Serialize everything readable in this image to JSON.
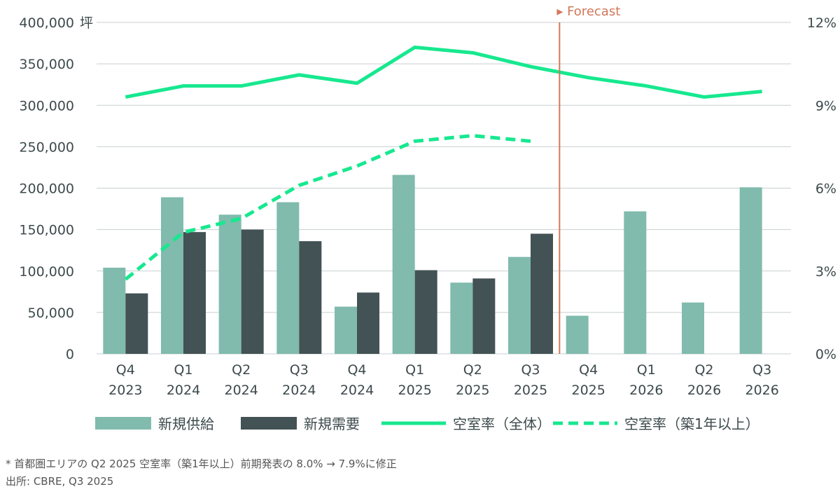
{
  "chart_data": {
    "type": "bar",
    "categories": [
      [
        "Q4",
        "2023"
      ],
      [
        "Q1",
        "2024"
      ],
      [
        "Q2",
        "2024"
      ],
      [
        "Q3",
        "2024"
      ],
      [
        "Q4",
        "2024"
      ],
      [
        "Q1",
        "2025"
      ],
      [
        "Q2",
        "2025"
      ],
      [
        "Q3",
        "2025"
      ],
      [
        "Q4",
        "2025"
      ],
      [
        "Q1",
        "2026"
      ],
      [
        "Q2",
        "2026"
      ],
      [
        "Q3",
        "2026"
      ]
    ],
    "series": [
      {
        "name": "新規供給",
        "kind": "bar",
        "axis": "left",
        "color": "#80bbad",
        "values": [
          104000,
          189000,
          168000,
          183000,
          57000,
          216000,
          86000,
          117000,
          46000,
          172000,
          62000,
          201000
        ]
      },
      {
        "name": "新規需要",
        "kind": "bar",
        "axis": "left",
        "color": "#435254",
        "values": [
          73000,
          147000,
          150000,
          136000,
          74000,
          101000,
          91000,
          145000,
          null,
          null,
          null,
          null
        ]
      },
      {
        "name": "空室率（全体）",
        "kind": "line",
        "axis": "right",
        "color": "#17e88f",
        "values": [
          9.3,
          9.7,
          9.7,
          10.1,
          9.8,
          11.1,
          10.9,
          10.4,
          10.0,
          9.7,
          9.3,
          9.5
        ]
      },
      {
        "name": "空室率（築1年以上）",
        "kind": "dashed-line",
        "axis": "right",
        "color": "#17e88f",
        "values": [
          2.7,
          4.4,
          4.9,
          6.1,
          6.8,
          7.7,
          7.9,
          7.7,
          null,
          null,
          null,
          null
        ]
      }
    ],
    "left_axis": {
      "ylim": [
        0,
        400000
      ],
      "ticks": [
        "0",
        "50,000",
        "100,000",
        "150,000",
        "200,000",
        "250,000",
        "300,000",
        "350,000",
        "400,000"
      ],
      "unit": "坪"
    },
    "right_axis": {
      "ylim": [
        0,
        12
      ],
      "ticks": [
        "0%",
        "3%",
        "6%",
        "9%",
        "12%"
      ]
    },
    "forecast": {
      "label": "▸ Forecast",
      "after_index": 7,
      "color": "#d2785a"
    },
    "grid": true,
    "legend_placement": "bottom"
  },
  "footnotes": {
    "note": "* 首都圏エリアの Q2 2025 空室率（築1年以上）前期発表の 8.0% → 7.9%に修正",
    "source": "出所: CBRE, Q3 2025"
  }
}
